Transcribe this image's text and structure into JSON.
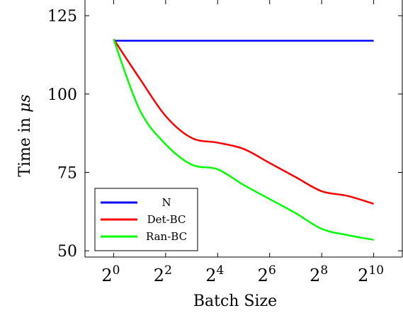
{
  "chart_data": {
    "type": "line",
    "xlabel": "Batch Size",
    "ylabel_text": "Time in ",
    "ylabel_unit": "μs",
    "x_scale": "log2",
    "x_exponents": [
      0,
      1,
      2,
      3,
      4,
      5,
      6,
      7,
      8,
      9,
      10
    ],
    "xlim_exponents": [
      -1.1,
      11.1
    ],
    "xticks": [
      {
        "base": "2",
        "exp": "0",
        "value": 0
      },
      {
        "base": "2",
        "exp": "2",
        "value": 2
      },
      {
        "base": "2",
        "exp": "4",
        "value": 4
      },
      {
        "base": "2",
        "exp": "6",
        "value": 6
      },
      {
        "base": "2",
        "exp": "8",
        "value": 8
      },
      {
        "base": "2",
        "exp": "10",
        "value": 10
      }
    ],
    "ylim": [
      48,
      130
    ],
    "yticks": [
      {
        "label": "50",
        "value": 50
      },
      {
        "label": "75",
        "value": 75
      },
      {
        "label": "100",
        "value": 100
      },
      {
        "label": "125",
        "value": 125
      }
    ],
    "grid": false,
    "legend_position": "bottom-left",
    "series": [
      {
        "name": "N",
        "color": "#0000ff",
        "values": [
          117,
          117,
          117,
          117,
          117,
          117,
          117,
          117,
          117,
          117,
          117
        ]
      },
      {
        "name": "Det-BC",
        "color": "#ff0000",
        "values": [
          117.5,
          105,
          93,
          86,
          84.5,
          82.5,
          78,
          73.5,
          69,
          67.5,
          65
        ]
      },
      {
        "name": "Ran-BC",
        "color": "#00ff00",
        "values": [
          117.5,
          95,
          84,
          77.5,
          76,
          71,
          66.5,
          62,
          57,
          55,
          53.5
        ]
      }
    ]
  }
}
